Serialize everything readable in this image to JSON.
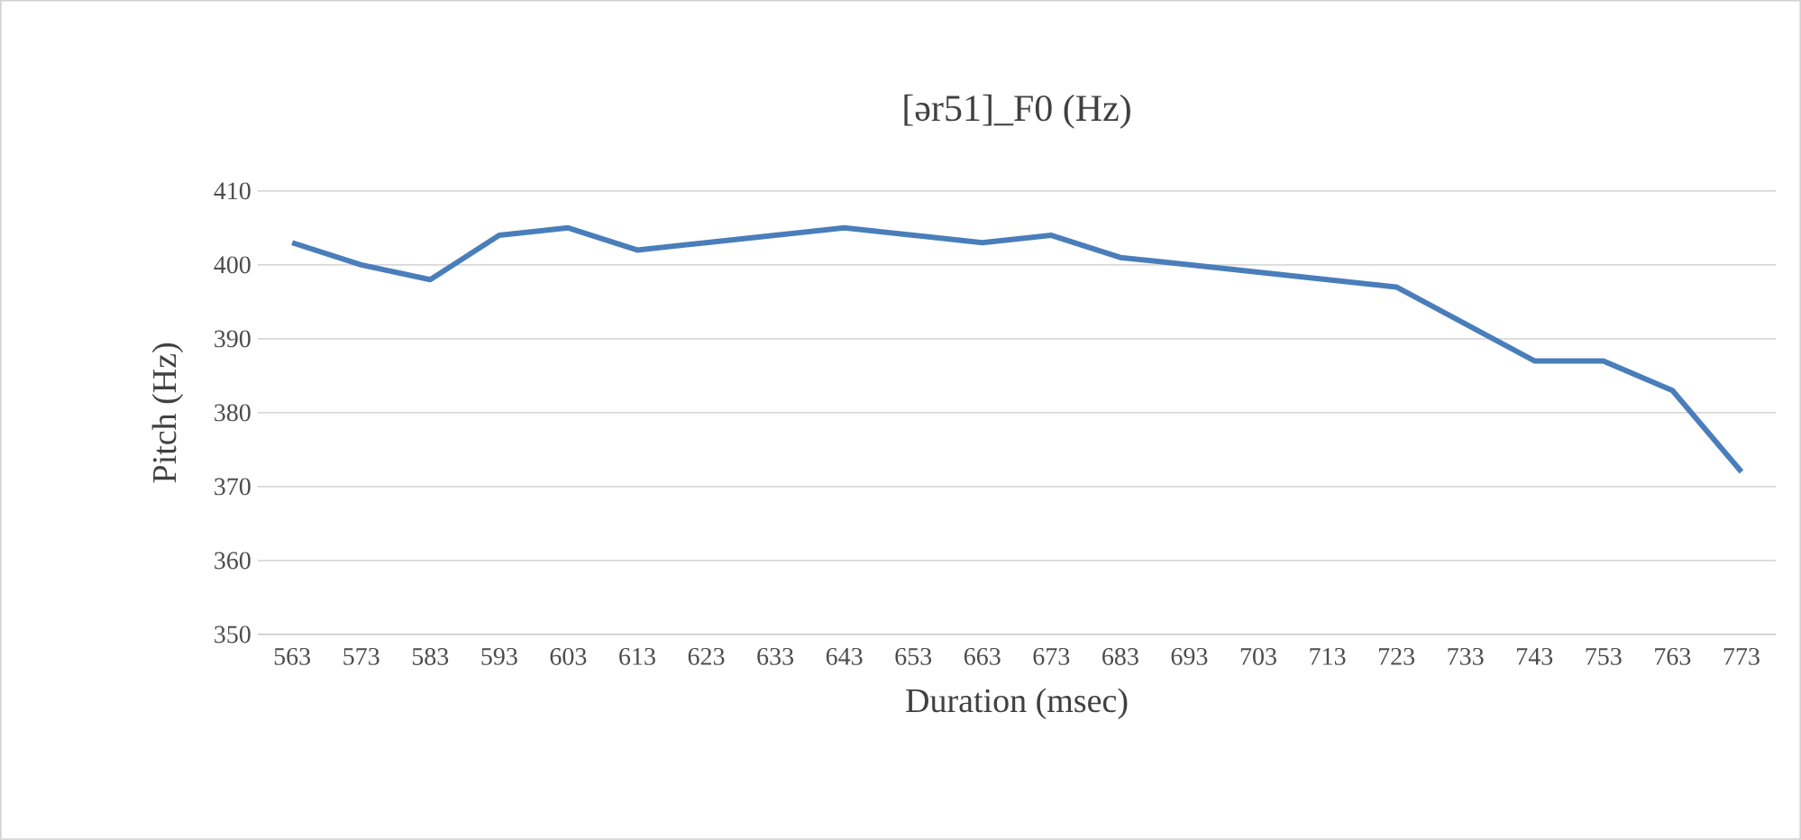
{
  "chart_data": {
    "type": "line",
    "title": "[ər51]_F0 (Hz)",
    "xlabel": "Duration (msec)",
    "ylabel": "Pitch (Hz)",
    "categories": [
      "563",
      "573",
      "583",
      "593",
      "603",
      "613",
      "623",
      "633",
      "643",
      "653",
      "663",
      "673",
      "683",
      "693",
      "703",
      "713",
      "723",
      "733",
      "743",
      "753",
      "763",
      "773"
    ],
    "series": [
      {
        "color": "#4a7ebb",
        "values": [
          403,
          400,
          398,
          404,
          405,
          402,
          403,
          404,
          405,
          404,
          403,
          404,
          401,
          400,
          399,
          398,
          397,
          392,
          387,
          387,
          383,
          372
        ]
      }
    ],
    "ylim": [
      350,
      410
    ],
    "yticks": [
      350,
      360,
      370,
      380,
      390,
      400,
      410
    ],
    "grid": "y",
    "marker": "none",
    "line_style": "solid"
  }
}
